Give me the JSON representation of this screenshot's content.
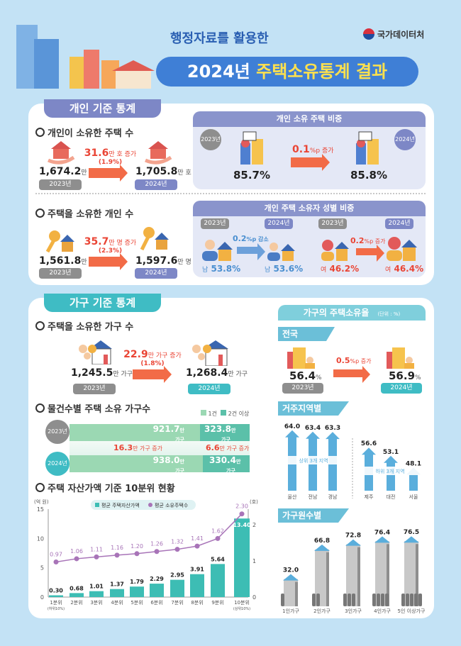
{
  "header": {
    "subtitle": "행정자료를 활용한",
    "title_year": "2024년",
    "title_rest": "주택소유통계 결과",
    "logo": "국가데이터처"
  },
  "colors": {
    "personal": "#7d87c6",
    "household": "#3fbcc4",
    "increase": "#ea4535",
    "bg": "#c3e2f5"
  },
  "personal": {
    "tag": "개인 기준 통계",
    "houses": {
      "heading": "개인이 소유한 주택 수",
      "v2023": "1,674.2",
      "v2024": "1,705.8",
      "unit": "만 호",
      "change": "31.6",
      "change_unit": "만 호 증가",
      "pct": "(1.9%)",
      "y2023": "2023년",
      "y2024": "2024년"
    },
    "share": {
      "title": "개인 소유 주택 비중",
      "y2023": "2023년",
      "y2024": "2024년",
      "v2023": "85.7%",
      "v2024": "85.8%",
      "change": "0.1",
      "change_unit": "%p 증가"
    },
    "owners": {
      "heading": "주택을 소유한 개인 수",
      "v2023": "1,561.8",
      "v2024": "1,597.6",
      "unit": "만 명",
      "change": "35.7",
      "change_unit": "만 명 증가",
      "pct": "(2.3%)",
      "y2023": "2023년",
      "y2024": "2024년"
    },
    "gender": {
      "title": "개인 주택 소유자 성별 비중",
      "y2023": "2023년",
      "y2024": "2024년",
      "male": {
        "label": "남",
        "v2023": "53.8%",
        "v2024": "53.6%",
        "change": "0.2",
        "change_unit": "%p 감소"
      },
      "female": {
        "label": "여",
        "v2023": "46.2%",
        "v2024": "46.4%",
        "change": "0.2",
        "change_unit": "%p 증가"
      }
    }
  },
  "household": {
    "tag": "가구 기준 통계",
    "count": {
      "heading": "주택을 소유한 가구 수",
      "v2023": "1,245.5",
      "v2024": "1,268.4",
      "unit": "만 가구",
      "change": "22.9",
      "change_unit": "만 가구 증가",
      "pct": "(1.8%)",
      "y2023": "2023년",
      "y2024": "2024년"
    },
    "bycount": {
      "heading": "물건수별 주택 소유 가구수",
      "legend": [
        "1건",
        "2건 이상"
      ],
      "y2023": "2023년",
      "y2024": "2024년",
      "one2023": "921.7",
      "multi2023": "323.8",
      "one2024": "938.0",
      "multi2024": "330.4",
      "unit1": "만",
      "unit2": "가구",
      "one_change": "16.3",
      "multi_change": "6.6",
      "change_unit": "만 가구 증가"
    },
    "decile": {
      "heading": "주택 자산가액 기준 10분위 현황"
    }
  },
  "chart_data": {
    "type": "bar+line",
    "title": "주택 자산가액 기준 10분위 현황",
    "categories": [
      "1분위",
      "2분위",
      "3분위",
      "4분위",
      "5분위",
      "6분위",
      "7분위",
      "8분위",
      "9분위",
      "10분위"
    ],
    "category_notes": {
      "0": "(하위10%)",
      "9": "(상위10%)"
    },
    "ylabel_left": "(억 원)",
    "ylabel_right": "(호)",
    "ylim_left": [
      0,
      15
    ],
    "yticks_left": [
      0,
      5,
      10,
      15
    ],
    "ylim_right": [
      0,
      2.5
    ],
    "yticks_right": [
      0,
      1,
      2
    ],
    "legend_position": "top",
    "series": [
      {
        "name": "평균 주택자산가액",
        "type": "bar",
        "axis": "left",
        "color": "#3dbdb4",
        "values": [
          0.3,
          0.68,
          1.01,
          1.37,
          1.79,
          2.29,
          2.95,
          3.91,
          5.64,
          13.4
        ]
      },
      {
        "name": "평균 소유주택수",
        "type": "line",
        "axis": "right",
        "color": "#a874b8",
        "values": [
          0.97,
          1.06,
          1.11,
          1.16,
          1.2,
          1.26,
          1.32,
          1.41,
          1.62,
          2.3
        ]
      }
    ]
  },
  "rate": {
    "title": "가구의 주택소유율",
    "unit": "(단위 : %)",
    "national": {
      "label": "전국",
      "v2023": "56.4",
      "v2024": "56.9",
      "pct": "%",
      "change": "0.5",
      "change_unit": "%p 증가",
      "y2023": "2023년",
      "y2024": "2024년"
    },
    "region": {
      "label": "거주지역별",
      "top_label": "상위 3개 지역",
      "bottom_label": "하위 3개 지역",
      "top": [
        {
          "name": "울산",
          "value": 64.0
        },
        {
          "name": "전남",
          "value": 63.4
        },
        {
          "name": "경남",
          "value": 63.3
        }
      ],
      "bottom": [
        {
          "name": "제주",
          "value": 56.6
        },
        {
          "name": "대전",
          "value": 53.1
        },
        {
          "name": "서울",
          "value": 48.1
        }
      ]
    },
    "members": {
      "label": "가구원수별",
      "items": [
        {
          "name": "1인가구",
          "value": 32.0
        },
        {
          "name": "2인가구",
          "value": 66.8
        },
        {
          "name": "3인가구",
          "value": 72.8
        },
        {
          "name": "4인가구",
          "value": 76.4
        },
        {
          "name": "5인 이상가구",
          "value": 76.5
        }
      ]
    }
  }
}
